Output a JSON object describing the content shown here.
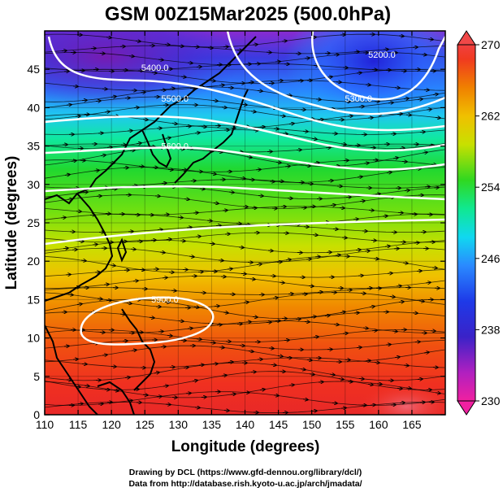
{
  "figure": {
    "title": "GSM 00Z15Mar2025 (500.0hPa)",
    "xlabel": "Longitude (degrees)",
    "ylabel": "Latitude  (degrees)",
    "credit_line1": "Drawing by DCL (https://www.gfd-dennou.org/library/dcl/)",
    "credit_line2": "Data from http://database.rish.kyoto-u.ac.jp/arch/jmadata/"
  },
  "map": {
    "lon_range": [
      110,
      170
    ],
    "lat_range": [
      0,
      50
    ],
    "x_ticks": [
      "110",
      "115",
      "120",
      "125",
      "130",
      "135",
      "140",
      "145",
      "150",
      "155",
      "160",
      "165"
    ],
    "y_ticks": [
      "0",
      "5",
      "10",
      "15",
      "20",
      "25",
      "30",
      "35",
      "40",
      "45"
    ],
    "grid": true,
    "field": "temperature (K), shaded",
    "contours": [
      {
        "label": "5400.0",
        "lon": 126.5,
        "lat": 44.8
      },
      {
        "label": "5500.0",
        "lon": 129.5,
        "lat": 40.8
      },
      {
        "label": "5600.0",
        "lon": 129.5,
        "lat": 34.6
      },
      {
        "label": "5300.0",
        "lon": 157.0,
        "lat": 40.8
      },
      {
        "label": "5200.0",
        "lon": 160.5,
        "lat": 46.5
      },
      {
        "label": "5900.0",
        "lon": 128.0,
        "lat": 14.6
      }
    ]
  },
  "colorbar": {
    "labels": [
      "270",
      "262",
      "254",
      "246",
      "238",
      "230"
    ],
    "min": 230,
    "max": 270,
    "colors": [
      "#f0206a",
      "#e5189a",
      "#8a28b0",
      "#1e1ed0",
      "#2a60ff",
      "#22a8ff",
      "#10e0e8",
      "#10e890",
      "#20d020",
      "#88e010",
      "#d8e000",
      "#f0c000",
      "#f09000",
      "#f06000",
      "#f03020",
      "#e82020"
    ]
  }
}
